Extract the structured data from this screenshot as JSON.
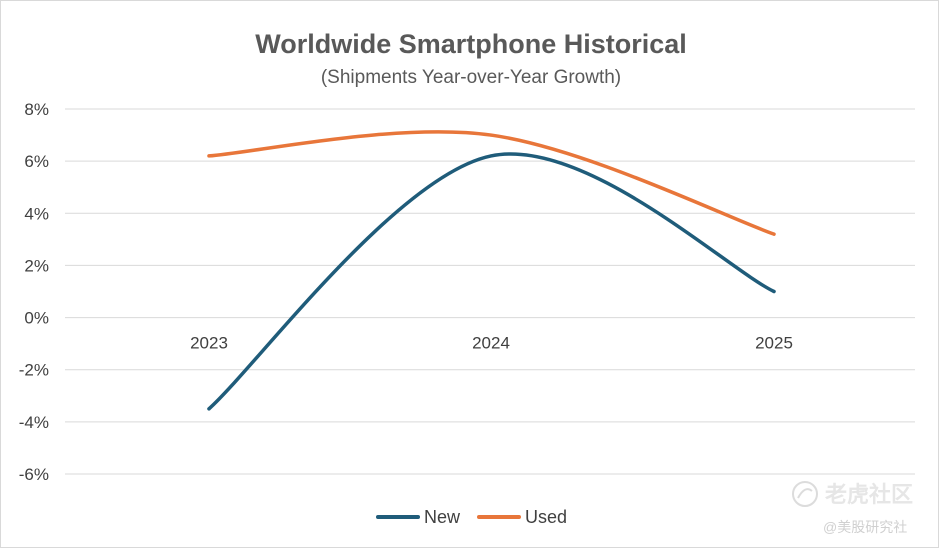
{
  "chart_data": {
    "type": "line",
    "title": "Worldwide Smartphone Historical",
    "subtitle": "(Shipments Year-over-Year Growth)",
    "categories": [
      "2023",
      "2024",
      "2025"
    ],
    "series": [
      {
        "name": "New",
        "values": [
          -3.5,
          6.2,
          1.0
        ],
        "color": "#1f5c7a"
      },
      {
        "name": "Used",
        "values": [
          6.2,
          7.0,
          3.2
        ],
        "color": "#e8763a"
      }
    ],
    "ylim": [
      -6,
      8
    ],
    "yticks": [
      8,
      6,
      4,
      2,
      0,
      -2,
      -4,
      -6
    ],
    "ytick_labels": [
      "8%",
      "6%",
      "4%",
      "2%",
      "0%",
      "-2%",
      "-4%",
      "-6%"
    ],
    "grid": true,
    "smooth": true,
    "legend": "bottom-center"
  },
  "watermark": {
    "brand": "老虎社区",
    "sub": "@美股研究社"
  }
}
